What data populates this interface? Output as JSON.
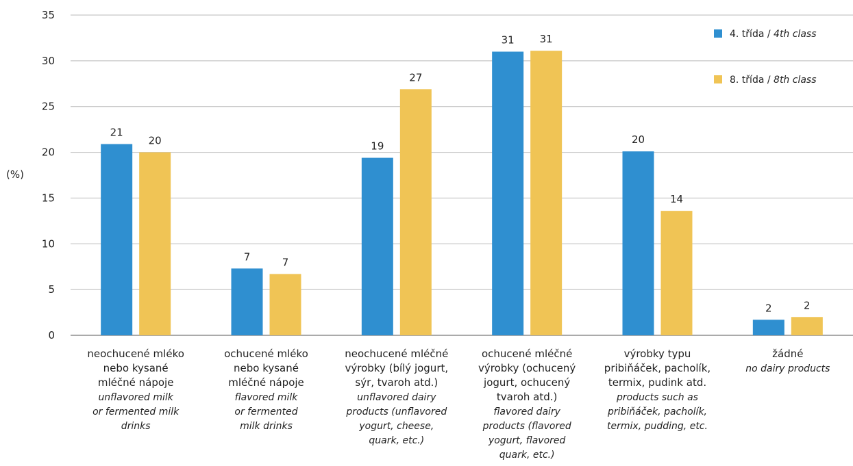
{
  "chart_data": {
    "type": "bar",
    "ylabel": "(%)",
    "ylim": [
      0,
      35
    ],
    "yticks": [
      0,
      5,
      10,
      15,
      20,
      25,
      30,
      35
    ],
    "grid": true,
    "legend_position": "top-right",
    "categories": [
      {
        "cz": [
          "neochucené mléko",
          "nebo kysané",
          "mléčné nápoje"
        ],
        "en": [
          "unflavored milk",
          "or fermented milk",
          "drinks"
        ]
      },
      {
        "cz": [
          "ochucené mléko",
          "nebo kysané",
          "mléčné nápoje"
        ],
        "en": [
          "flavored milk",
          "or fermented",
          "milk drinks"
        ]
      },
      {
        "cz": [
          "neochucené mléčné",
          "výrobky (bílý jogurt,",
          "sýr, tvaroh atd.)"
        ],
        "en": [
          "unflavored dairy",
          "products (unflavored",
          "yogurt, cheese,",
          "quark, etc.)"
        ]
      },
      {
        "cz": [
          "ochucené mléčné",
          "výrobky (ochucený",
          "jogurt, ochucený",
          "tvaroh atd.)"
        ],
        "en": [
          "flavored dairy",
          "products (flavored",
          "yogurt, flavored",
          "quark, etc.)"
        ]
      },
      {
        "cz": [
          "výrobky typu",
          "pribiňáček, pacholík,",
          "termix, pudink atd."
        ],
        "en": [
          "products such as",
          "pribiňáček, pacholík,",
          "termix, pudding, etc."
        ]
      },
      {
        "cz": [
          "žádné"
        ],
        "en": [
          "no dairy products"
        ]
      }
    ],
    "series": [
      {
        "name_cz": "4. třída",
        "name_en": "4th class",
        "color": "#2f8fd0",
        "values": [
          20.9,
          7.3,
          19.4,
          31.0,
          20.1,
          1.7
        ],
        "labels": [
          "21",
          "7",
          "19",
          "31",
          "20",
          "2"
        ]
      },
      {
        "name_cz": "8. třída",
        "name_en": "8th class",
        "color": "#f0c455",
        "values": [
          20.0,
          6.7,
          26.9,
          31.1,
          13.6,
          2.0
        ],
        "labels": [
          "20",
          "7",
          "27",
          "31",
          "14",
          "2"
        ]
      }
    ]
  }
}
